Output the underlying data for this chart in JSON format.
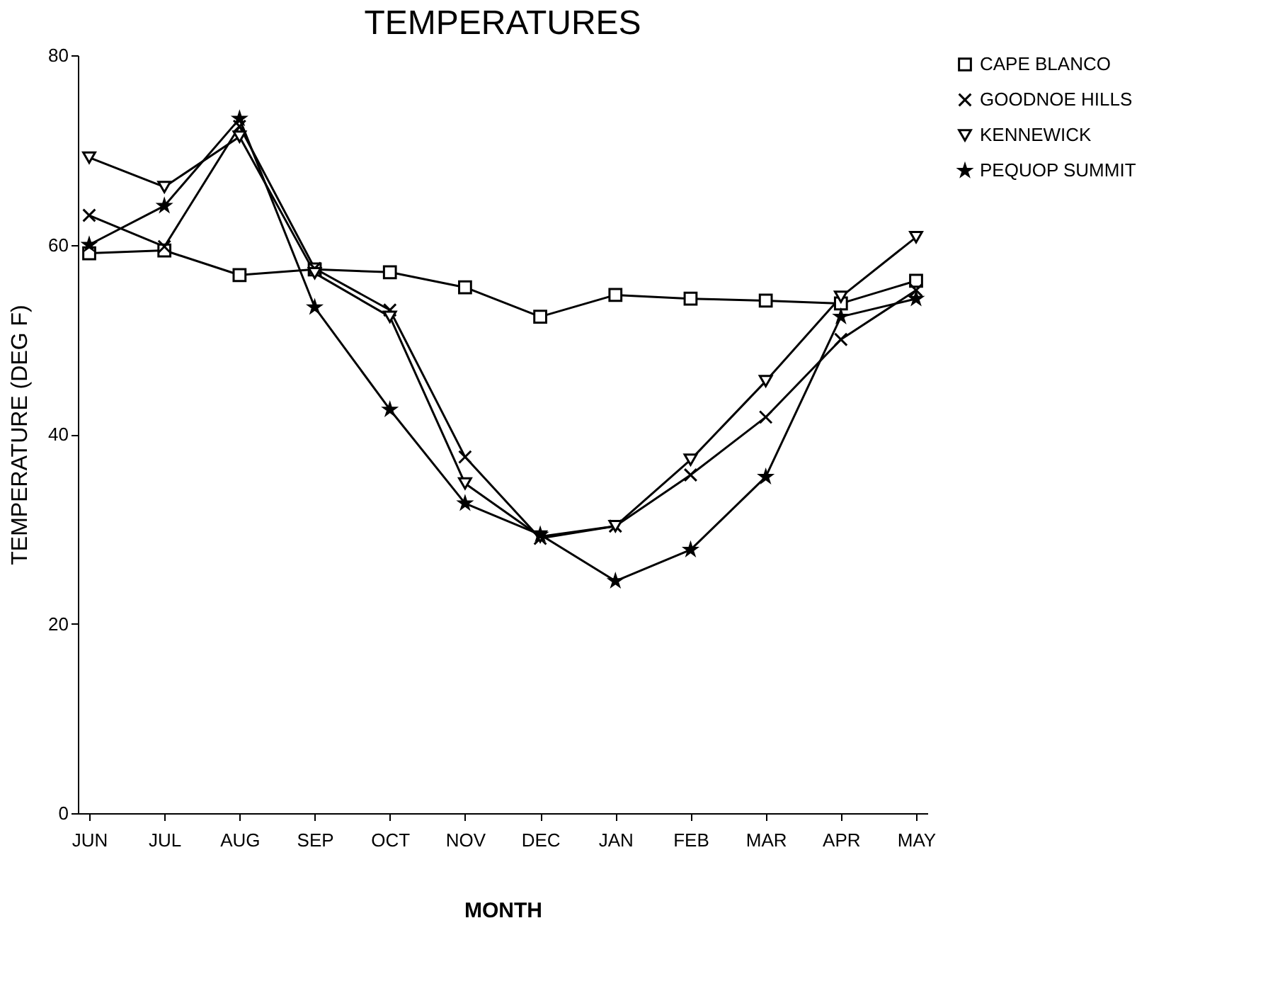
{
  "chart_data": {
    "type": "line",
    "title": "TEMPERATURES",
    "xlabel": "MONTH",
    "ylabel": "TEMPERATURE (DEG F)",
    "categories": [
      "JUN",
      "JUL",
      "AUG",
      "SEP",
      "OCT",
      "NOV",
      "DEC",
      "JAN",
      "FEB",
      "MAR",
      "APR",
      "MAY"
    ],
    "series": [
      {
        "name": "CAPE BLANCO",
        "color": "#000000",
        "marker": "square",
        "values": [
          59.1,
          59.4,
          56.8,
          57.4,
          57.1,
          55.5,
          52.4,
          54.7,
          54.3,
          54.1,
          53.8,
          56.2
        ]
      },
      {
        "name": "GOODNOE HILLS",
        "color": "#000000",
        "marker": "cross",
        "values": [
          63.1,
          59.8,
          72.5,
          57.5,
          53.1,
          37.6,
          29.0,
          30.3,
          35.7,
          41.8,
          50.0,
          55.2
        ]
      },
      {
        "name": "KENNEWICK",
        "color": "#000000",
        "marker": "triangle",
        "values": [
          69.2,
          66.1,
          71.4,
          57.0,
          52.4,
          34.8,
          29.2,
          30.3,
          37.3,
          45.6,
          54.5,
          60.8
        ]
      },
      {
        "name": "PEQUOP SUMMIT",
        "color": "#000000",
        "marker": "star",
        "values": [
          60.0,
          64.1,
          73.3,
          53.4,
          42.6,
          32.7,
          29.4,
          24.5,
          27.8,
          35.5,
          52.4,
          54.3
        ]
      }
    ],
    "ylim": [
      0,
      80
    ],
    "yticks": [
      0,
      20,
      40,
      60,
      80
    ],
    "grid": false,
    "legend": "top right",
    "line_style": "solid"
  }
}
